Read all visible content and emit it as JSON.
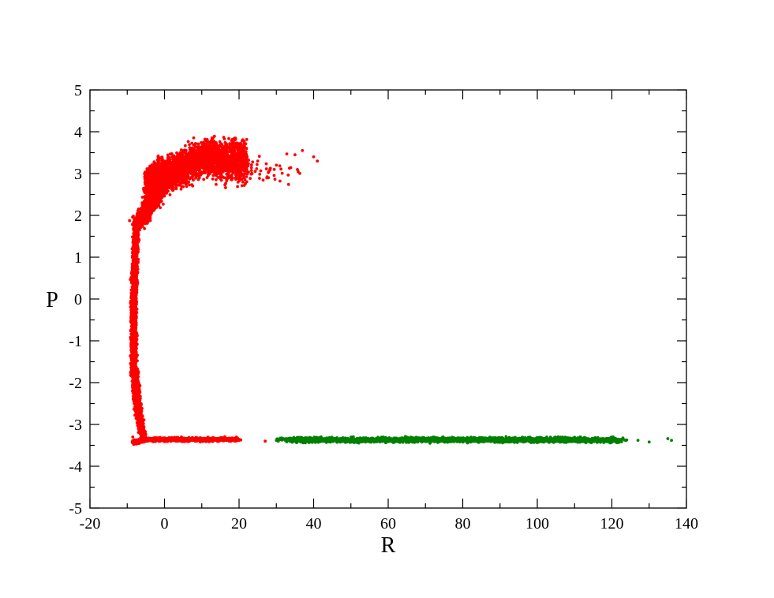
{
  "chart_data": {
    "type": "scatter",
    "title": "",
    "xlabel": "R",
    "ylabel": "P",
    "xlim": [
      -20,
      140
    ],
    "ylim": [
      -5,
      5
    ],
    "x_major_ticks": [
      -20,
      0,
      20,
      40,
      60,
      80,
      100,
      120,
      140
    ],
    "x_minor_ticks": [
      -10,
      10,
      30,
      50,
      70,
      90,
      110,
      130
    ],
    "y_major_ticks": [
      -5,
      -4,
      -3,
      -2,
      -1,
      0,
      1,
      2,
      3,
      4,
      5
    ],
    "x_tick_labels": [
      "-20",
      "0",
      "20",
      "40",
      "60",
      "80",
      "100",
      "120",
      "140"
    ],
    "y_tick_labels": [
      "-5",
      "-4",
      "-3",
      "-2",
      "-1",
      "0",
      "1",
      "2",
      "3",
      "4",
      "5"
    ],
    "grid": false,
    "legend": "none",
    "series": [
      {
        "color": "#ff0000",
        "shape": "C-shaped dense cloud",
        "points": [
          [
            -8.5,
            -3.3
          ],
          [
            -5.5,
            -3.35
          ],
          [
            0,
            -3.35
          ],
          [
            5,
            -3.38
          ],
          [
            10,
            -3.38
          ],
          [
            15,
            -3.38
          ],
          [
            20,
            -3.38
          ],
          [
            27,
            -3.4
          ],
          [
            34,
            -3.4
          ],
          [
            -8,
            -2.5
          ],
          [
            -7.5,
            -2.0
          ],
          [
            -8.2,
            -1.2
          ],
          [
            -8.5,
            -0.5
          ],
          [
            -8.3,
            0.0
          ],
          [
            -8.0,
            0.6
          ],
          [
            -7.5,
            1.3
          ],
          [
            -7.0,
            1.9
          ],
          [
            -6.0,
            2.3
          ],
          [
            -5.0,
            2.6
          ],
          [
            -3.0,
            2.9
          ],
          [
            0,
            3.0
          ],
          [
            3,
            3.2
          ],
          [
            5,
            3.4
          ],
          [
            8,
            3.6
          ],
          [
            10,
            3.3
          ],
          [
            15,
            3.1
          ],
          [
            20,
            3.0
          ],
          [
            22,
            3.6
          ],
          [
            25,
            3.3
          ],
          [
            30,
            3.2
          ],
          [
            35,
            3.45
          ],
          [
            37,
            3.55
          ],
          [
            40,
            3.4
          ],
          [
            41,
            3.3
          ]
        ]
      },
      {
        "color": "#008000",
        "shape": "horizontal band",
        "points": [
          [
            31,
            -3.33
          ],
          [
            35,
            -3.36
          ],
          [
            40,
            -3.37
          ],
          [
            50,
            -3.38
          ],
          [
            60,
            -3.38
          ],
          [
            70,
            -3.38
          ],
          [
            80,
            -3.37
          ],
          [
            85,
            -3.35
          ],
          [
            90,
            -3.37
          ],
          [
            100,
            -3.38
          ],
          [
            110,
            -3.38
          ],
          [
            120,
            -3.36
          ],
          [
            124,
            -3.37
          ],
          [
            127,
            -3.38
          ],
          [
            130,
            -3.42
          ],
          [
            135,
            -3.34
          ],
          [
            136,
            -3.38
          ]
        ]
      }
    ]
  }
}
